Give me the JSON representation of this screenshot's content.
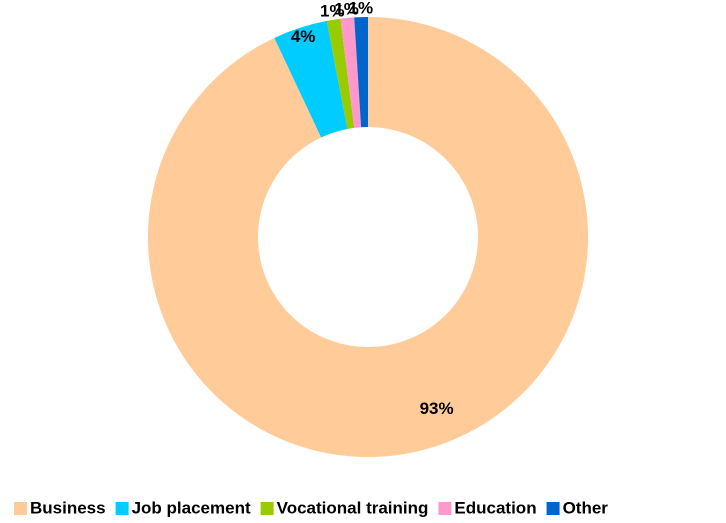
{
  "chart_data": {
    "type": "donut",
    "categories": [
      "Business",
      "Job placement",
      "Vocational training",
      "Education",
      "Other"
    ],
    "values": [
      93,
      4,
      1,
      1,
      1
    ],
    "value_labels": [
      "93%",
      "4%",
      "1%",
      "1%",
      "1%"
    ],
    "colors": [
      "#ffcc99",
      "#00ccff",
      "#99cc00",
      "#ff99cc",
      "#0066cc"
    ],
    "legend": "bottom"
  }
}
